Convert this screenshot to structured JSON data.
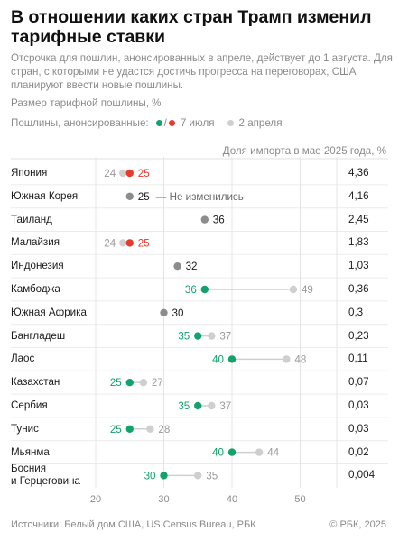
{
  "title": "В отношении каких стран Трамп изменил тарифные ставки",
  "subtitle": "Отсрочка для пошлин, анонсированных в апреле, действует до 1 августа. Для стран, с которыми не удастся достичь прогресса на переговорах, США планируют ввести новые пошлины.",
  "measure_label": "Размер тарифной пошлины, %",
  "legend": {
    "prefix": "Пошлины, анонсированные:",
    "slash": "/",
    "july_label": "7 июля",
    "april_label": "2 апреля"
  },
  "right_header": "Доля импорта в мае 2025 года, %",
  "unchanged_note": "— Не изменились",
  "colors": {
    "lower": "#12a26c",
    "higher": "#e8392f",
    "unchanged": "#8c8c8c",
    "april": "#cfcfcf",
    "connector": "#cfcfcf"
  },
  "chart_data": {
    "type": "dot-range",
    "x_range": [
      20,
      53
    ],
    "x_ticks": [
      20,
      30,
      40,
      50
    ],
    "rows": [
      {
        "country": [
          "Япония"
        ],
        "april": 24,
        "july": 25,
        "status": "higher",
        "share": "4,36"
      },
      {
        "country": [
          "Южная Корея"
        ],
        "april": 25,
        "july": 25,
        "status": "unchanged",
        "share": "4,16"
      },
      {
        "country": [
          "Таиланд"
        ],
        "april": 36,
        "july": 36,
        "status": "unchanged",
        "share": "2,45"
      },
      {
        "country": [
          "Малайзия"
        ],
        "april": 24,
        "july": 25,
        "status": "higher",
        "share": "1,83"
      },
      {
        "country": [
          "Индонезия"
        ],
        "april": 32,
        "july": 32,
        "status": "unchanged",
        "share": "1,03"
      },
      {
        "country": [
          "Камбоджа"
        ],
        "april": 49,
        "july": 36,
        "status": "lower",
        "share": "0,36"
      },
      {
        "country": [
          "Южная Африка"
        ],
        "april": 30,
        "july": 30,
        "status": "unchanged",
        "share": "0,3"
      },
      {
        "country": [
          "Бангладеш"
        ],
        "april": 37,
        "july": 35,
        "status": "lower",
        "share": "0,23"
      },
      {
        "country": [
          "Лаос"
        ],
        "april": 48,
        "july": 40,
        "status": "lower",
        "share": "0,11"
      },
      {
        "country": [
          "Казахстан"
        ],
        "april": 27,
        "july": 25,
        "status": "lower",
        "share": "0,07"
      },
      {
        "country": [
          "Сербия"
        ],
        "april": 37,
        "july": 35,
        "status": "lower",
        "share": "0,03"
      },
      {
        "country": [
          "Тунис"
        ],
        "april": 28,
        "july": 25,
        "status": "lower",
        "share": "0,03"
      },
      {
        "country": [
          "Мьянма"
        ],
        "april": 44,
        "july": 40,
        "status": "lower",
        "share": "0,02"
      },
      {
        "country": [
          "Босния",
          "и Герцеговина"
        ],
        "april": 35,
        "july": 30,
        "status": "lower",
        "share": "0,004"
      }
    ]
  },
  "source": "Источники: Белый дом США, US Census Bureau, РБК",
  "copyright": "© РБК, 2025"
}
